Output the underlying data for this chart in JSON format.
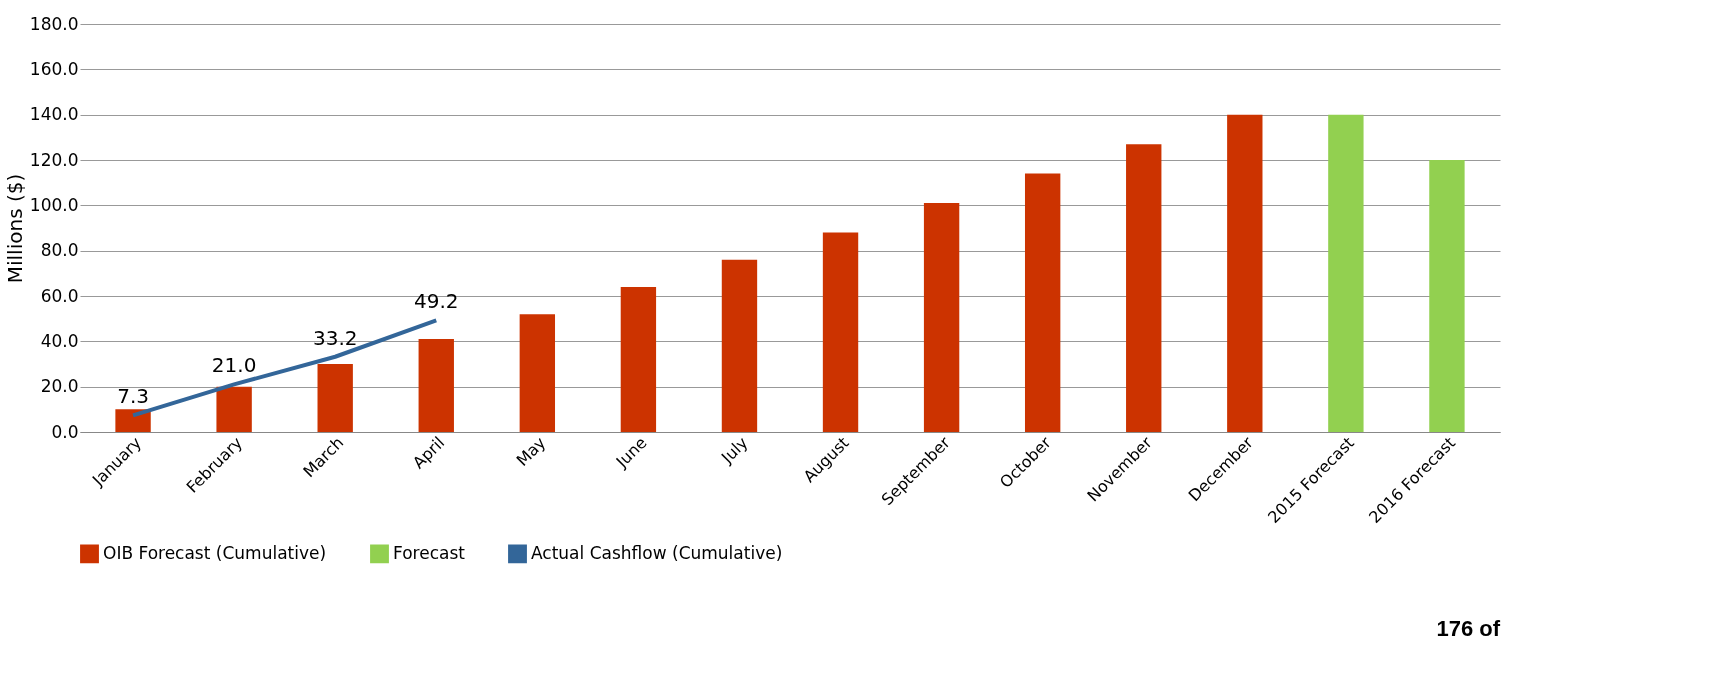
{
  "chart_data": {
    "type": "bar",
    "ylabel": "Millions ($)",
    "categories": [
      "January",
      "February",
      "March",
      "April",
      "May",
      "June",
      "July",
      "August",
      "September",
      "October",
      "November",
      "December",
      "2015 Forecast",
      "2016 Forecast"
    ],
    "series": [
      {
        "name": "OIB Forecast (Cumulative)",
        "color": "#cc3300",
        "values": [
          10,
          20,
          30,
          41,
          52,
          64,
          76,
          88,
          101,
          114,
          127,
          140,
          null,
          null
        ]
      },
      {
        "name": "Forecast",
        "color": "#92d050",
        "values": [
          null,
          null,
          null,
          null,
          null,
          null,
          null,
          null,
          null,
          null,
          null,
          null,
          140,
          120
        ]
      },
      {
        "name": "Actual Cashflow (Cumulative)",
        "type": "line",
        "color": "#336699",
        "values": [
          7.3,
          21.0,
          33.2,
          49.2,
          null,
          null,
          null,
          null,
          null,
          null,
          null,
          null,
          null,
          null
        ],
        "value_labels": [
          "7.3",
          "21.0",
          "33.2",
          "49.2",
          null,
          null,
          null,
          null,
          null,
          null,
          null,
          null,
          null,
          null
        ]
      }
    ],
    "ylim": [
      0,
      180
    ],
    "yticks": [
      {
        "value": 0,
        "label": "0.0"
      },
      {
        "value": 20,
        "label": "20.0"
      },
      {
        "value": 40,
        "label": "40.0"
      },
      {
        "value": 60,
        "label": "60.0"
      },
      {
        "value": 80,
        "label": "80.0"
      },
      {
        "value": 100,
        "label": "100.0"
      },
      {
        "value": 120,
        "label": "120.0"
      },
      {
        "value": 140,
        "label": "140.0"
      },
      {
        "value": 160,
        "label": "160.0"
      },
      {
        "value": 180,
        "label": "180.0"
      }
    ],
    "grid": "y",
    "legend": "bottom",
    "marker": "none",
    "line_style": "solid",
    "annotations": [
      "176 of"
    ]
  }
}
